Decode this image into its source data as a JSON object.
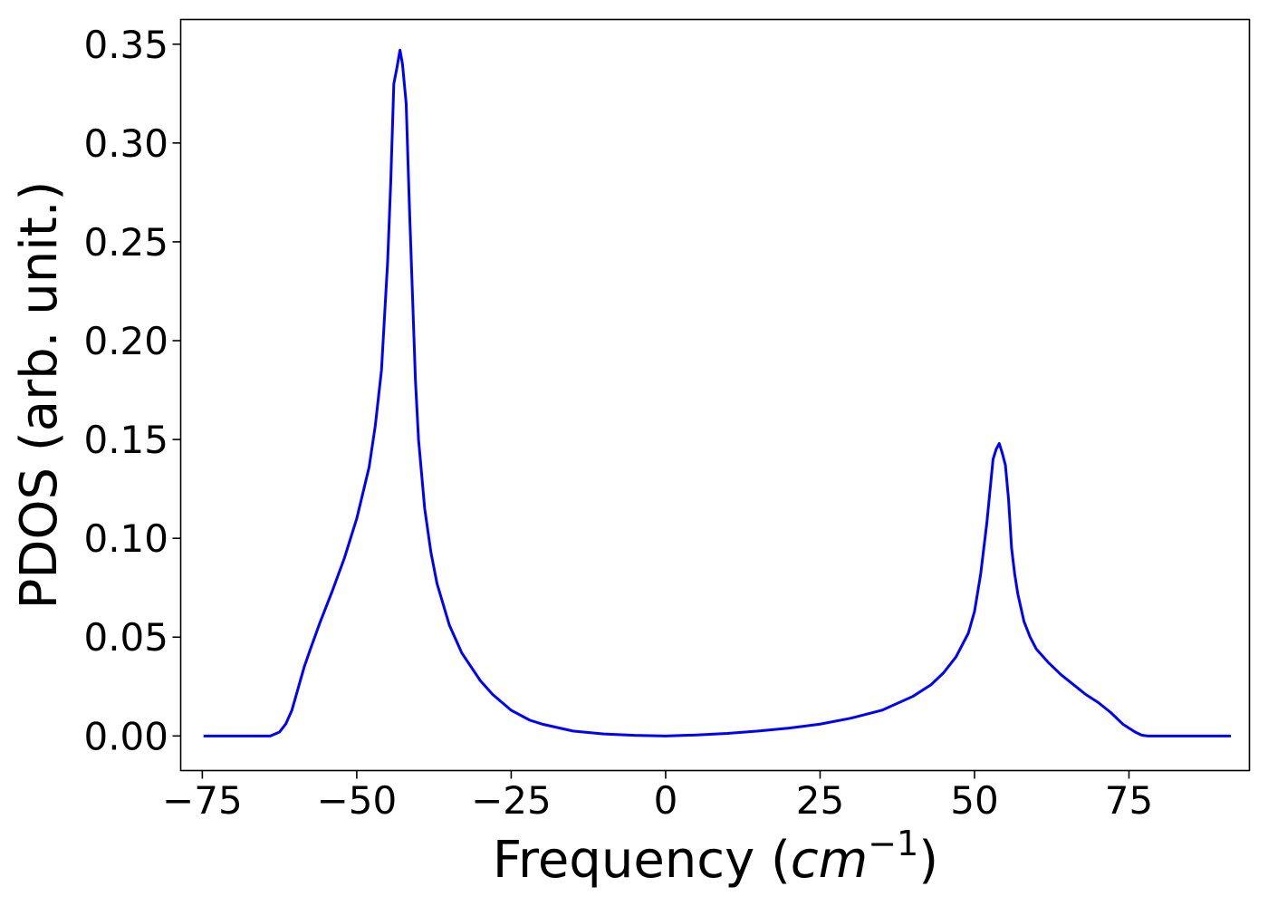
{
  "chart_data": {
    "type": "line",
    "title": "",
    "xlabel": "Frequency (cm−1)",
    "xlabel_parts": {
      "prefix": "Frequency (",
      "unit": "cm",
      "exponent": "−1",
      "suffix": ")"
    },
    "ylabel": "PDOS (arb. unit.)",
    "xlim": [
      -78.5,
      94.5
    ],
    "ylim": [
      -0.0175,
      0.3625
    ],
    "xticks": [
      -75,
      -50,
      -25,
      0,
      25,
      50,
      75
    ],
    "xtick_labels": [
      "−75",
      "−50",
      "−25",
      "0",
      "25",
      "50",
      "75"
    ],
    "yticks": [
      0.0,
      0.05,
      0.1,
      0.15,
      0.2,
      0.25,
      0.3,
      0.35
    ],
    "ytick_labels": [
      "0.00",
      "0.05",
      "0.10",
      "0.15",
      "0.20",
      "0.25",
      "0.30",
      "0.35"
    ],
    "grid": false,
    "legend": "none",
    "series": [
      {
        "color": "#0000ff",
        "x": [
          -74.8,
          -64,
          -62.5,
          -61.5,
          -60.5,
          -59.5,
          -58.5,
          -57.5,
          -56,
          -54,
          -52,
          -50,
          -48,
          -47,
          -46,
          -45,
          -44.5,
          -44,
          -43.5,
          -43,
          -42.6,
          -42,
          -41.5,
          -41,
          -40.5,
          -40,
          -39,
          -38,
          -37,
          -35,
          -33,
          -30,
          -28,
          -25,
          -22,
          -20,
          -15,
          -10,
          -5,
          0,
          5,
          10,
          15,
          20,
          25,
          30,
          35,
          40,
          43,
          45,
          47,
          49,
          50,
          51,
          52,
          53,
          53.5,
          54,
          54.5,
          55,
          55.5,
          56,
          56.5,
          57,
          58,
          59,
          60,
          62,
          64,
          66,
          68,
          70,
          72,
          74,
          75,
          76,
          77,
          77.5,
          78,
          79,
          80,
          82,
          85,
          91.5
        ],
        "y": [
          0.0,
          0.0,
          0.002,
          0.006,
          0.013,
          0.024,
          0.035,
          0.044,
          0.057,
          0.073,
          0.09,
          0.11,
          0.136,
          0.157,
          0.185,
          0.24,
          0.28,
          0.33,
          0.338,
          0.347,
          0.34,
          0.32,
          0.27,
          0.225,
          0.18,
          0.15,
          0.115,
          0.093,
          0.077,
          0.056,
          0.042,
          0.028,
          0.021,
          0.013,
          0.008,
          0.006,
          0.0025,
          0.001,
          0.0003,
          0.0,
          0.0005,
          0.0013,
          0.0025,
          0.004,
          0.006,
          0.009,
          0.013,
          0.02,
          0.026,
          0.032,
          0.04,
          0.052,
          0.063,
          0.082,
          0.108,
          0.14,
          0.145,
          0.148,
          0.143,
          0.137,
          0.12,
          0.095,
          0.082,
          0.072,
          0.058,
          0.05,
          0.044,
          0.037,
          0.031,
          0.026,
          0.021,
          0.017,
          0.012,
          0.006,
          0.004,
          0.002,
          0.0005,
          0.0002,
          0.0,
          0.0,
          0.0,
          0.0,
          0.0,
          0.0
        ]
      }
    ]
  }
}
